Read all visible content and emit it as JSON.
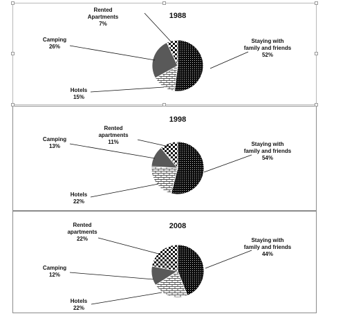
{
  "chart_data": [
    {
      "type": "pie",
      "title": "1988",
      "categories": [
        "Staying with family and friends",
        "Hotels",
        "Camping",
        "Rented Apartments"
      ],
      "values": [
        52,
        15,
        26,
        7
      ],
      "labels": [
        {
          "lines": [
            "Staying with",
            "family and friends"
          ],
          "pct": "52%"
        },
        {
          "lines": [
            "Hotels"
          ],
          "pct": "15%"
        },
        {
          "lines": [
            "Camping"
          ],
          "pct": "26%"
        },
        {
          "lines": [
            "Rented",
            "Apartments"
          ],
          "pct": "7%"
        }
      ]
    },
    {
      "type": "pie",
      "title": "1998",
      "categories": [
        "Staying with family and friends",
        "Hotels",
        "Camping",
        "Rented apartments"
      ],
      "values": [
        54,
        22,
        13,
        11
      ],
      "labels": [
        {
          "lines": [
            "Staying with",
            "family and friends"
          ],
          "pct": "54%"
        },
        {
          "lines": [
            "Hotels"
          ],
          "pct": "22%"
        },
        {
          "lines": [
            "Camping"
          ],
          "pct": "13%"
        },
        {
          "lines": [
            "Rented",
            "apartments"
          ],
          "pct": "11%"
        }
      ]
    },
    {
      "type": "pie",
      "title": "2008",
      "categories": [
        "Staying with family and friends",
        "Hotels",
        "Camping",
        "Rented apartments"
      ],
      "values": [
        44,
        22,
        12,
        22
      ],
      "labels": [
        {
          "lines": [
            "Staying with",
            "family and friends"
          ],
          "pct": "44%"
        },
        {
          "lines": [
            "Hotels"
          ],
          "pct": "22%"
        },
        {
          "lines": [
            "Camping"
          ],
          "pct": "12%"
        },
        {
          "lines": [
            "Rented",
            "apartments"
          ],
          "pct": "22%"
        }
      ]
    }
  ],
  "fills": {
    "family": "dots-black",
    "hotels": "brick-white",
    "camping": "#595959",
    "rented": "checker-black-white"
  }
}
